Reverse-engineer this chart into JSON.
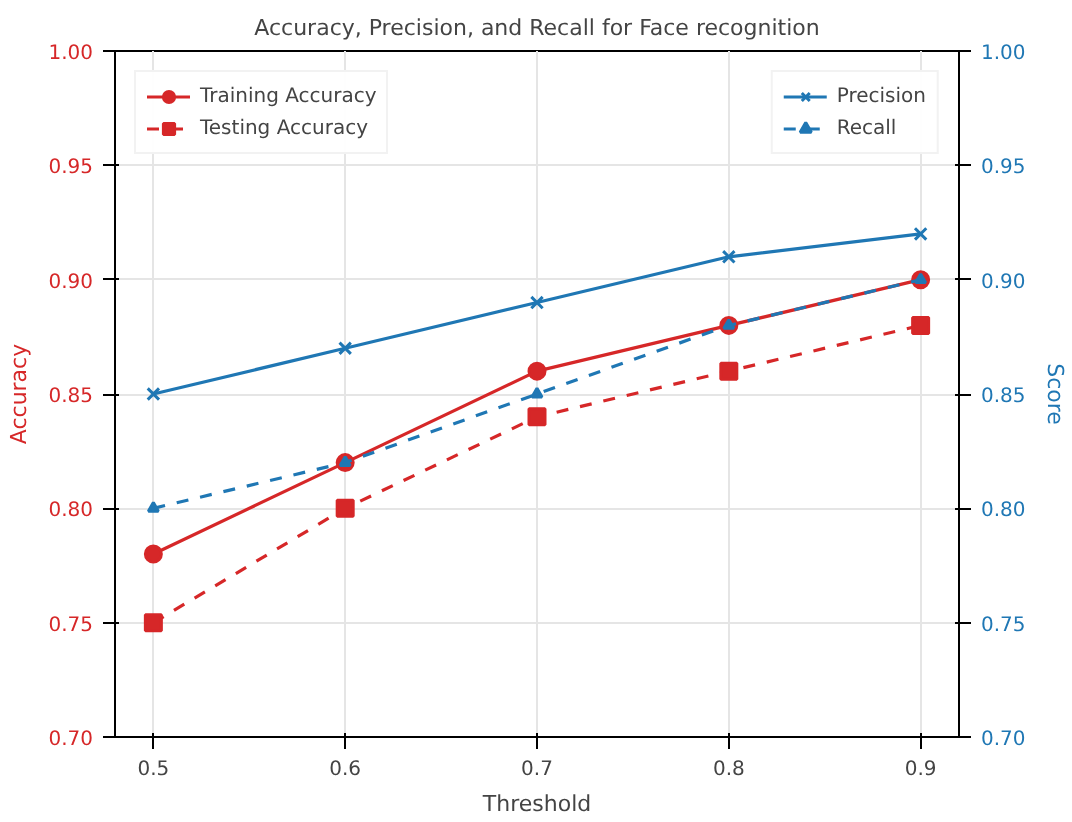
{
  "chart_data": {
    "type": "line",
    "title": "Accuracy, Precision, and Recall for Face recognition",
    "xlabel": "Threshold",
    "ylabel": "Accuracy",
    "y2label": "Score",
    "x": [
      0.5,
      0.6,
      0.7,
      0.8,
      0.9
    ],
    "xlim": [
      0.48,
      0.92
    ],
    "xticks": [
      0.5,
      0.6,
      0.7,
      0.8,
      0.9
    ],
    "ylim": [
      0.7,
      1.0
    ],
    "yticks": [
      {
        "value": 0.7,
        "label": "0.70"
      },
      {
        "value": 0.75,
        "label": "0.75"
      },
      {
        "value": 0.8,
        "label": "0.80"
      },
      {
        "value": 0.85,
        "label": "0.85"
      },
      {
        "value": 0.9,
        "label": "0.90"
      },
      {
        "value": 0.95,
        "label": "0.95"
      },
      {
        "value": 1.0,
        "label": "1.00"
      }
    ],
    "y2lim": [
      0.7,
      1.0
    ],
    "y2ticks": [
      {
        "value": 0.7,
        "label": "0.70"
      },
      {
        "value": 0.75,
        "label": "0.75"
      },
      {
        "value": 0.8,
        "label": "0.80"
      },
      {
        "value": 0.85,
        "label": "0.85"
      },
      {
        "value": 0.9,
        "label": "0.90"
      },
      {
        "value": 0.95,
        "label": "0.95"
      },
      {
        "value": 1.0,
        "label": "1.00"
      }
    ],
    "grid": true,
    "legend": "top",
    "series": [
      {
        "name": "Training Accuracy",
        "color": "#d62728",
        "values": [
          0.78,
          0.82,
          0.86,
          0.88,
          0.9
        ],
        "marker": "circle",
        "line_style": "solid"
      },
      {
        "name": "Testing Accuracy",
        "color": "#d62728",
        "values": [
          0.75,
          0.8,
          0.84,
          0.86,
          0.88
        ],
        "marker": "square",
        "line_style": "dashed"
      },
      {
        "name": "Precision",
        "color": "#1f77b4",
        "values": [
          0.85,
          0.87,
          0.89,
          0.91,
          0.92
        ],
        "marker": "cross",
        "line_style": "solid",
        "axis": "y2"
      },
      {
        "name": "Recall",
        "color": "#1f77b4",
        "values": [
          0.8,
          0.82,
          0.85,
          0.88,
          0.9
        ],
        "marker": "triangle",
        "line_style": "dashed",
        "axis": "y2"
      }
    ]
  }
}
